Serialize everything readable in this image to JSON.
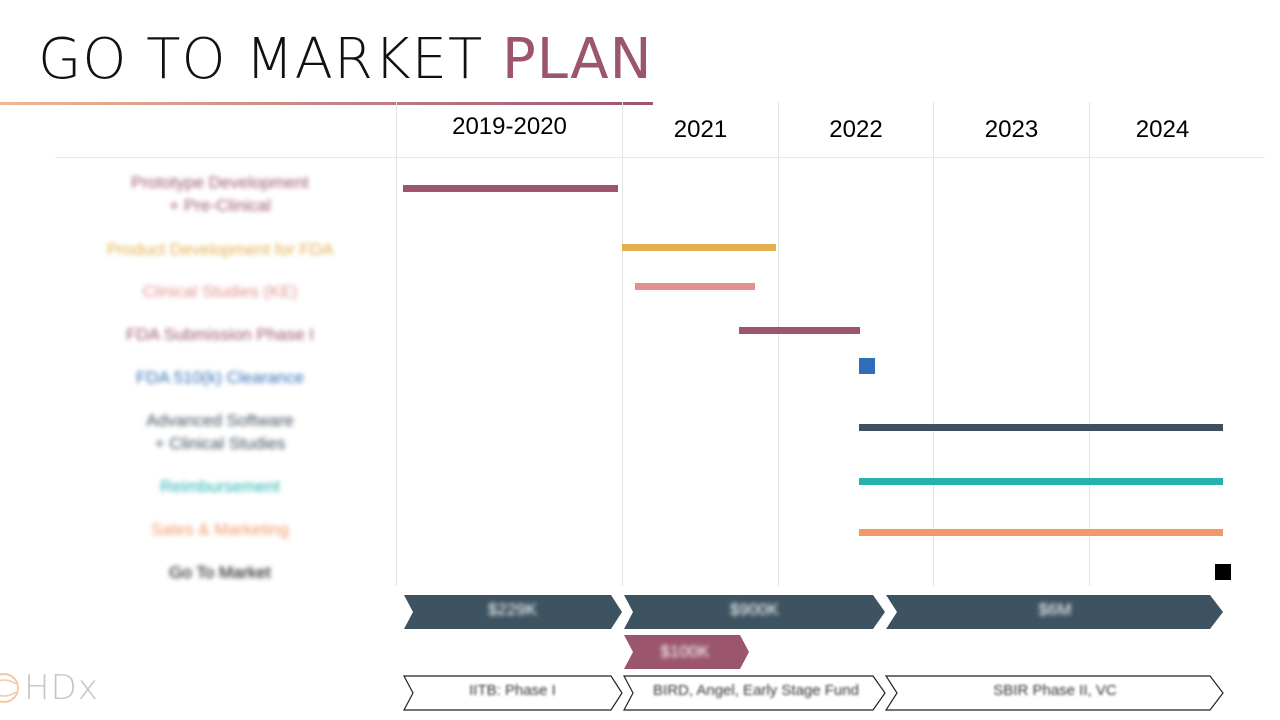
{
  "title": {
    "main": "GO TO MARKET",
    "accent": "PLAN"
  },
  "timeline": {
    "columns": [
      "2019-2020",
      "2021",
      "2022",
      "2023",
      "2024"
    ]
  },
  "tasks": [
    {
      "label": "Prototype Development\n+ Pre-Clinical",
      "color": "#9b566e",
      "start": "2019-2020",
      "end": "2019-2020"
    },
    {
      "label": "Product Development for FDA",
      "color": "#e2b04d",
      "start": "2021",
      "end": "2021"
    },
    {
      "label": "Clinical Studies (KE)",
      "color": "#e3918f",
      "start": "2021",
      "end": "2021"
    },
    {
      "label": "FDA Submission Phase I",
      "color": "#9b566e",
      "start": "2021",
      "end": "2022"
    },
    {
      "label": "FDA 510(k) Clearance",
      "color": "#2f6fb5",
      "milestone": "2022"
    },
    {
      "label": "Advanced Software\n+ Clinical Studies",
      "color": "#3e5060",
      "start": "2022",
      "end": "2024"
    },
    {
      "label": "Reimbursement",
      "color": "#26b3b0",
      "start": "2022",
      "end": "2024"
    },
    {
      "label": "Sales & Marketing",
      "color": "#f19a67",
      "start": "2022",
      "end": "2024"
    },
    {
      "label": "Go To Market",
      "color": "#000000",
      "milestone": "2024"
    }
  ],
  "funding": {
    "amounts": [
      "$229K",
      "$900K",
      "$6M"
    ],
    "additional": "$100K",
    "sources": [
      "IITB: Phase I",
      "BIRD, Angel, Early Stage Fund",
      "SBIR Phase II, VC"
    ],
    "arrow_color": "#3d5361",
    "additional_color": "#9b566e"
  },
  "logo": {
    "text": "HDx",
    "color": "#c5c5c5"
  }
}
